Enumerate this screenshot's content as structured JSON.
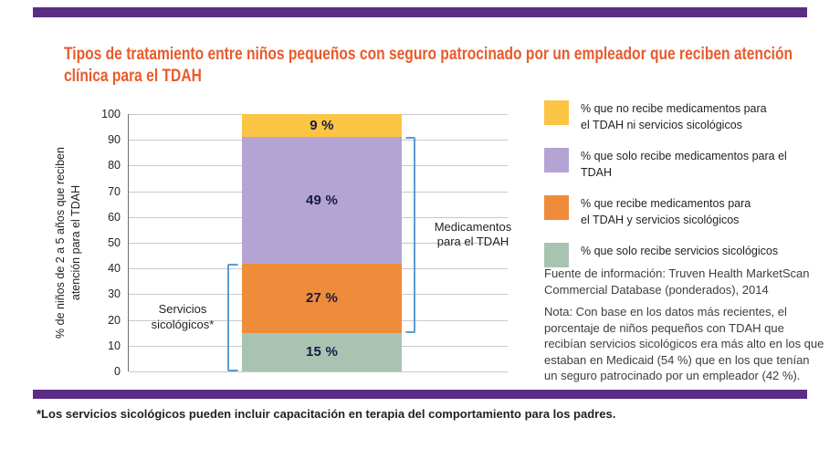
{
  "page": {
    "accent_purple": "#5c2d87",
    "title_color": "#e75b2b",
    "footnote": "*Los servicios sicológicos pueden incluir capacitación en terapia del comportamiento para los padres."
  },
  "chart_data": {
    "type": "bar",
    "stacked": true,
    "title": "Tipos de tratamiento entre niños pequeños con seguro patrocinado por un empleador que reciben atención\nclínica para el TDAH",
    "ylabel": "% de niños de 2 a 5 años que reciben\natención para el TDAH",
    "xlabel": "",
    "ylim": [
      0,
      100
    ],
    "yticks": [
      0,
      10,
      20,
      30,
      40,
      50,
      60,
      70,
      80,
      90,
      100
    ],
    "grid": true,
    "legend_position": "right",
    "bracket_color": "#5b9bd5",
    "series": [
      {
        "key": "solo-servicios-sicologicos",
        "name": "% que solo recibe servicios sicológicos",
        "value": 15,
        "label": "15 %",
        "color": "#a9c3b3"
      },
      {
        "key": "medicamentos-y-servicios",
        "name": "% que recibe medicamentos para el TDAH y servicios sicológicos",
        "value": 27,
        "label": "27 %",
        "color": "#ee8c3b"
      },
      {
        "key": "solo-medicamentos",
        "name": "% que solo recibe medicamentos para el TDAH",
        "value": 49,
        "label": "49 %",
        "color": "#b3a4d4"
      },
      {
        "key": "sin-tratamiento",
        "name": "% que no recibe medicamentos para el TDAH ni servicios sicológicos",
        "value": 9,
        "label": "9 %",
        "color": "#fcc444"
      }
    ],
    "annotations": [
      {
        "key": "medicamentos",
        "text": "Medicamentos\npara el TDAH",
        "side": "right",
        "from": 15,
        "to": 91
      },
      {
        "key": "servicios",
        "text": "Servicios\nsicológicos*",
        "side": "left",
        "from": 0,
        "to": 42
      }
    ]
  },
  "legend": {
    "items": [
      {
        "label": "% que no recibe medicamentos para\nel TDAH ni servicios sicológicos",
        "color": "#fcc444"
      },
      {
        "label": "% que solo recibe medicamentos para el TDAH",
        "color": "#b3a4d4"
      },
      {
        "label": "% que recibe medicamentos para\nel TDAH y servicios sicológicos",
        "color": "#ee8c3b"
      },
      {
        "label": "% que solo recibe servicios sicológicos",
        "color": "#a9c3b3"
      }
    ]
  },
  "side_text": {
    "source": "Fuente de información: Truven Health MarketScan\nCommercial Database (ponderados), 2014",
    "note": "Nota: Con base en los datos más recientes, el\nporcentaje de niños pequeños con TDAH que\nrecibían servicios sicológicos era más alto en los que\nestaban en Medicaid (54 %) que en los que tenían\nun seguro patrocinado por un empleador (42 %)."
  }
}
